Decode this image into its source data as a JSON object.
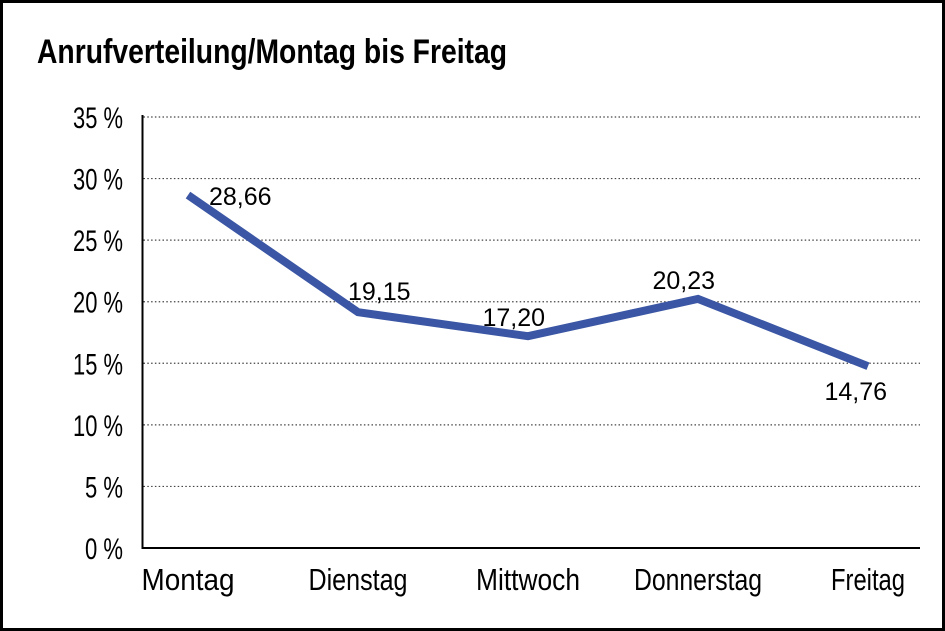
{
  "window": {
    "background_color": "#FFFFFF",
    "border_color": "#000000"
  },
  "chart_data": {
    "type": "line",
    "title": "Anrufverteilung/Montag bis Freitag",
    "categories": [
      "Montag",
      "Dienstag",
      "Mittwoch",
      "Donnerstag",
      "Freitag"
    ],
    "values": [
      28.66,
      19.15,
      17.2,
      20.23,
      14.76
    ],
    "data_labels": [
      "28,66",
      "19,15",
      "17,20",
      "20,23",
      "14,76"
    ],
    "data_label_placements": [
      "right-of-point",
      "above-right",
      "above-left",
      "above-left",
      "below-left"
    ],
    "xlabel": "",
    "ylabel": "",
    "ylim": [
      0,
      35
    ],
    "ytick_step": 5,
    "ytick_labels": [
      "0 %",
      "5 %",
      "10 %",
      "15 %",
      "20 %",
      "25 %",
      "30 %",
      "35 %"
    ],
    "grid": "horizontal-dotted",
    "legend": "none"
  },
  "colors": {
    "line": "#3A56A4",
    "axis": "#000000",
    "gridline": "#454545",
    "text": "#000000",
    "background": "#FFFFFF",
    "border": "#000000"
  }
}
